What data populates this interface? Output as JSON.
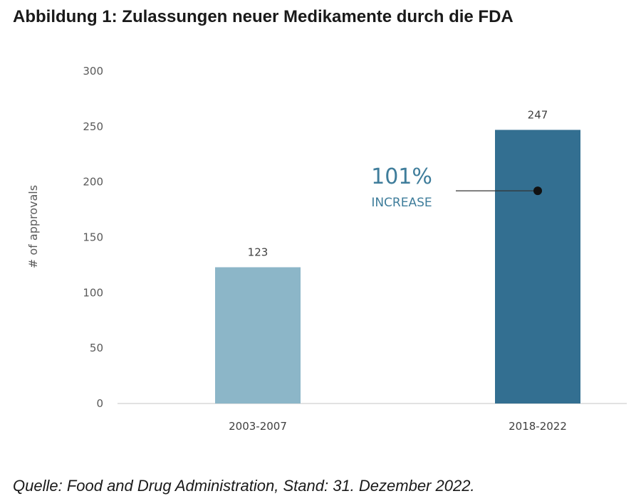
{
  "title": "Abbildung 1: Zulassungen neuer Medikamente durch die FDA",
  "source": "Quelle: Food and Drug Administration, Stand: 31. Dezember 2022.",
  "chart_data": {
    "type": "bar",
    "categories": [
      "2003-2007",
      "2018-2022"
    ],
    "values": [
      123,
      247
    ],
    "data_labels": [
      "123",
      "247"
    ],
    "bar_colors": [
      "#8cb6c8",
      "#336f91"
    ],
    "ylabel": "# of approvals",
    "ylim": [
      0,
      300
    ],
    "yticks": [
      0,
      50,
      100,
      150,
      200,
      250,
      300
    ],
    "grid": false,
    "annotation": {
      "value_text": "101%",
      "label_text": "INCREASE",
      "color": "#3f7d9b",
      "target_category": "2018-2022",
      "target_value": 192
    }
  }
}
